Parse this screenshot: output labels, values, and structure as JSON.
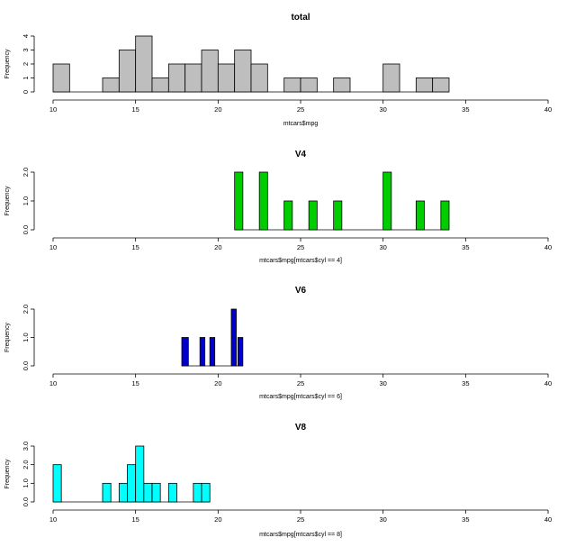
{
  "chart_data": [
    {
      "type": "bar",
      "title": "total",
      "xlabel": "mtcars$mpg",
      "ylabel": "Frequency",
      "xlim": [
        10,
        40
      ],
      "ylim": [
        0,
        4
      ],
      "xticks": [
        10,
        15,
        20,
        25,
        30,
        35,
        40
      ],
      "yticks": [
        "0",
        "1",
        "2",
        "3",
        "4"
      ],
      "ytick_values": [
        0,
        1,
        2,
        3,
        4
      ],
      "color": "#bebebe",
      "bins": [
        {
          "start": 10,
          "end": 11,
          "count": 2
        },
        {
          "start": 13,
          "end": 14,
          "count": 1
        },
        {
          "start": 14,
          "end": 15,
          "count": 3
        },
        {
          "start": 15,
          "end": 16,
          "count": 4
        },
        {
          "start": 16,
          "end": 17,
          "count": 1
        },
        {
          "start": 17,
          "end": 18,
          "count": 2
        },
        {
          "start": 18,
          "end": 19,
          "count": 2
        },
        {
          "start": 19,
          "end": 20,
          "count": 3
        },
        {
          "start": 20,
          "end": 21,
          "count": 2
        },
        {
          "start": 21,
          "end": 22,
          "count": 3
        },
        {
          "start": 22,
          "end": 23,
          "count": 2
        },
        {
          "start": 24,
          "end": 25,
          "count": 1
        },
        {
          "start": 25,
          "end": 26,
          "count": 1
        },
        {
          "start": 27,
          "end": 28,
          "count": 1
        },
        {
          "start": 30,
          "end": 31,
          "count": 2
        },
        {
          "start": 32,
          "end": 33,
          "count": 1
        },
        {
          "start": 33,
          "end": 34,
          "count": 1
        }
      ]
    },
    {
      "type": "bar",
      "title": "V4",
      "xlabel": "mtcars$mpg[mtcars$cyl == 4]",
      "ylabel": "Frequency",
      "xlim": [
        10,
        40
      ],
      "ylim": [
        0,
        2
      ],
      "xticks": [
        10,
        15,
        20,
        25,
        30,
        35,
        40
      ],
      "yticks": [
        "0.0",
        "1.0",
        "2.0"
      ],
      "ytick_values": [
        0,
        1,
        2
      ],
      "color": "#00cd00",
      "bins": [
        {
          "start": 21.0,
          "end": 21.5,
          "count": 2
        },
        {
          "start": 22.5,
          "end": 23.0,
          "count": 2
        },
        {
          "start": 24.0,
          "end": 24.5,
          "count": 1
        },
        {
          "start": 25.5,
          "end": 26.0,
          "count": 1
        },
        {
          "start": 27.0,
          "end": 27.5,
          "count": 1
        },
        {
          "start": 30.0,
          "end": 30.5,
          "count": 2
        },
        {
          "start": 32.0,
          "end": 32.5,
          "count": 1
        },
        {
          "start": 33.5,
          "end": 34.0,
          "count": 1
        }
      ]
    },
    {
      "type": "bar",
      "title": "V6",
      "xlabel": "mtcars$mpg[mtcars$cyl == 6]",
      "ylabel": "Frequency",
      "xlim": [
        10,
        40
      ],
      "ylim": [
        0,
        2
      ],
      "xticks": [
        10,
        15,
        20,
        25,
        30,
        35,
        40
      ],
      "yticks": [
        "0.0",
        "1.0",
        "2.0"
      ],
      "ytick_values": [
        0,
        1,
        2
      ],
      "color": "#0000cd",
      "bins": [
        {
          "start": 17.8,
          "end": 18.2,
          "count": 1
        },
        {
          "start": 18.9,
          "end": 19.2,
          "count": 1
        },
        {
          "start": 19.5,
          "end": 19.8,
          "count": 1
        },
        {
          "start": 20.8,
          "end": 21.1,
          "count": 2
        },
        {
          "start": 21.2,
          "end": 21.5,
          "count": 1
        }
      ]
    },
    {
      "type": "bar",
      "title": "V8",
      "xlabel": "mtcars$mpg[mtcars$cyl == 8]",
      "ylabel": "Frequency",
      "xlim": [
        10,
        40
      ],
      "ylim": [
        0,
        3
      ],
      "xticks": [
        10,
        15,
        20,
        25,
        30,
        35,
        40
      ],
      "yticks": [
        "0.0",
        "1.0",
        "2.0",
        "3.0"
      ],
      "ytick_values": [
        0,
        1,
        2,
        3
      ],
      "color": "#00ffff",
      "bins": [
        {
          "start": 10.0,
          "end": 10.5,
          "count": 2
        },
        {
          "start": 13.0,
          "end": 13.5,
          "count": 1
        },
        {
          "start": 14.0,
          "end": 14.5,
          "count": 1
        },
        {
          "start": 14.5,
          "end": 15.0,
          "count": 2
        },
        {
          "start": 15.0,
          "end": 15.5,
          "count": 3
        },
        {
          "start": 15.5,
          "end": 16.0,
          "count": 1
        },
        {
          "start": 16.0,
          "end": 16.5,
          "count": 1
        },
        {
          "start": 17.0,
          "end": 17.5,
          "count": 1
        },
        {
          "start": 18.5,
          "end": 19.0,
          "count": 1
        },
        {
          "start": 19.0,
          "end": 19.5,
          "count": 1
        }
      ]
    }
  ]
}
